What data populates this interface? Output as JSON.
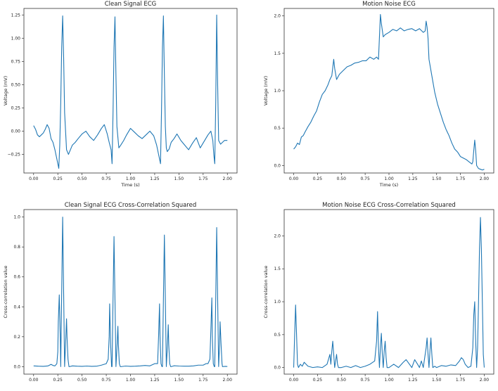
{
  "chart_data": [
    {
      "type": "line",
      "title": "Clean Signal ECG",
      "xlabel": "Time (s)",
      "ylabel": "Voltage (mV)",
      "xlim": [
        -0.1,
        2.1
      ],
      "ylim": [
        -0.45,
        1.32
      ],
      "xticks": [
        0.0,
        0.25,
        0.5,
        0.75,
        1.0,
        1.25,
        1.5,
        1.75,
        2.0
      ],
      "xtick_labels": [
        "0.00",
        "0.25",
        "0.50",
        "0.75",
        "1.00",
        "1.25",
        "1.50",
        "1.75",
        "2.00"
      ],
      "yticks": [
        -0.25,
        0.0,
        0.25,
        0.5,
        0.75,
        1.0,
        1.25
      ],
      "ytick_labels": [
        "−0.25",
        "0.00",
        "0.25",
        "0.50",
        "0.75",
        "1.00",
        "1.25"
      ],
      "series": [
        {
          "color": "#1f77b4",
          "x": [
            0.0,
            0.02,
            0.04,
            0.06,
            0.08,
            0.1,
            0.12,
            0.14,
            0.16,
            0.18,
            0.2,
            0.22,
            0.24,
            0.26,
            0.27,
            0.28,
            0.29,
            0.3,
            0.31,
            0.32,
            0.34,
            0.36,
            0.38,
            0.4,
            0.43,
            0.46,
            0.5,
            0.54,
            0.58,
            0.62,
            0.66,
            0.7,
            0.73,
            0.76,
            0.78,
            0.8,
            0.81,
            0.82,
            0.83,
            0.84,
            0.85,
            0.86,
            0.88,
            0.9,
            0.93,
            0.96,
            1.0,
            1.04,
            1.08,
            1.12,
            1.16,
            1.2,
            1.24,
            1.27,
            1.29,
            1.31,
            1.32,
            1.33,
            1.34,
            1.35,
            1.36,
            1.37,
            1.38,
            1.4,
            1.42,
            1.45,
            1.48,
            1.52,
            1.56,
            1.6,
            1.64,
            1.68,
            1.72,
            1.76,
            1.8,
            1.83,
            1.85,
            1.86,
            1.87,
            1.88,
            1.89,
            1.9,
            1.91,
            1.93,
            1.95,
            1.97,
            2.0
          ],
          "y": [
            0.06,
            0.02,
            -0.04,
            -0.06,
            -0.04,
            -0.02,
            0.02,
            0.07,
            0.03,
            -0.08,
            -0.12,
            -0.2,
            -0.3,
            -0.4,
            -0.15,
            0.3,
            0.9,
            1.24,
            0.8,
            0.2,
            -0.2,
            -0.25,
            -0.2,
            -0.15,
            -0.12,
            -0.08,
            -0.03,
            0.0,
            -0.06,
            -0.1,
            -0.04,
            0.03,
            0.07,
            -0.03,
            -0.12,
            -0.2,
            -0.35,
            0.2,
            0.9,
            1.23,
            0.6,
            0.05,
            -0.18,
            -0.15,
            -0.1,
            -0.04,
            0.03,
            -0.01,
            -0.05,
            -0.08,
            -0.04,
            0.0,
            -0.05,
            -0.15,
            -0.25,
            -0.35,
            0.2,
            0.9,
            1.24,
            0.6,
            0.05,
            -0.18,
            -0.22,
            -0.19,
            -0.12,
            -0.08,
            -0.03,
            -0.1,
            -0.15,
            -0.2,
            -0.13,
            -0.07,
            -0.18,
            -0.11,
            -0.04,
            0.0,
            -0.1,
            -0.25,
            -0.35,
            0.3,
            1.25,
            0.5,
            -0.1,
            -0.14,
            -0.12,
            -0.1,
            -0.1
          ]
        }
      ]
    },
    {
      "type": "line",
      "title": "Motion Noise ECG",
      "xlabel": "Time (s)",
      "ylabel": "Voltage (mV)",
      "xlim": [
        -0.1,
        2.1
      ],
      "ylim": [
        -0.1,
        2.1
      ],
      "xticks": [
        0.0,
        0.25,
        0.5,
        0.75,
        1.0,
        1.25,
        1.5,
        1.75,
        2.0
      ],
      "xtick_labels": [
        "0.00",
        "0.25",
        "0.50",
        "0.75",
        "1.00",
        "1.25",
        "1.50",
        "1.75",
        "2.00"
      ],
      "yticks": [
        0.0,
        0.5,
        1.0,
        1.5,
        2.0
      ],
      "ytick_labels": [
        "0.0",
        "0.5",
        "1.0",
        "1.5",
        "2.0"
      ],
      "series": [
        {
          "color": "#1f77b4",
          "x": [
            0.0,
            0.02,
            0.04,
            0.06,
            0.08,
            0.1,
            0.12,
            0.15,
            0.18,
            0.21,
            0.24,
            0.27,
            0.3,
            0.33,
            0.36,
            0.38,
            0.4,
            0.42,
            0.43,
            0.45,
            0.48,
            0.52,
            0.56,
            0.6,
            0.64,
            0.68,
            0.72,
            0.76,
            0.8,
            0.84,
            0.87,
            0.89,
            0.9,
            0.91,
            0.92,
            0.94,
            0.96,
            1.0,
            1.04,
            1.08,
            1.12,
            1.16,
            1.2,
            1.24,
            1.28,
            1.32,
            1.36,
            1.38,
            1.39,
            1.4,
            1.41,
            1.42,
            1.45,
            1.48,
            1.51,
            1.54,
            1.57,
            1.6,
            1.63,
            1.66,
            1.69,
            1.72,
            1.75,
            1.78,
            1.81,
            1.84,
            1.87,
            1.88,
            1.89,
            1.9,
            1.91,
            1.92,
            1.94,
            1.96,
            1.98,
            2.0
          ],
          "y": [
            0.22,
            0.25,
            0.3,
            0.28,
            0.38,
            0.4,
            0.45,
            0.52,
            0.58,
            0.66,
            0.73,
            0.85,
            0.95,
            1.0,
            1.08,
            1.15,
            1.2,
            1.42,
            1.3,
            1.15,
            1.22,
            1.27,
            1.32,
            1.34,
            1.37,
            1.38,
            1.4,
            1.4,
            1.45,
            1.42,
            1.45,
            1.42,
            1.72,
            2.02,
            1.9,
            1.72,
            1.75,
            1.78,
            1.82,
            1.8,
            1.84,
            1.8,
            1.82,
            1.83,
            1.8,
            1.83,
            1.78,
            1.8,
            1.93,
            1.85,
            1.7,
            1.42,
            1.2,
            0.98,
            0.82,
            0.7,
            0.58,
            0.48,
            0.4,
            0.3,
            0.22,
            0.18,
            0.12,
            0.1,
            0.08,
            0.05,
            0.02,
            0.05,
            0.2,
            0.34,
            0.2,
            0.0,
            -0.04,
            -0.05,
            -0.06,
            -0.05
          ]
        }
      ]
    },
    {
      "type": "line",
      "title": "Clean Signal ECG Cross-Correlation Squared",
      "xlabel": "",
      "ylabel": "Cross-correlation value",
      "xlim": [
        -0.1,
        2.1
      ],
      "ylim": [
        -0.05,
        1.05
      ],
      "xticks": [
        0.0,
        0.25,
        0.5,
        0.75,
        1.0,
        1.25,
        1.5,
        1.75,
        2.0
      ],
      "xtick_labels": [
        "0.00",
        "0.25",
        "0.50",
        "0.75",
        "1.00",
        "1.25",
        "1.50",
        "1.75",
        "2.00"
      ],
      "yticks": [
        0.0,
        0.2,
        0.4,
        0.6,
        0.8,
        1.0
      ],
      "ytick_labels": [
        "0.0",
        "0.2",
        "0.4",
        "0.6",
        "0.8",
        "1.0"
      ],
      "series": [
        {
          "color": "#1f77b4",
          "x": [
            0.0,
            0.05,
            0.1,
            0.15,
            0.18,
            0.2,
            0.22,
            0.24,
            0.25,
            0.255,
            0.265,
            0.275,
            0.28,
            0.29,
            0.3,
            0.31,
            0.32,
            0.33,
            0.34,
            0.345,
            0.355,
            0.365,
            0.37,
            0.4,
            0.45,
            0.5,
            0.55,
            0.6,
            0.65,
            0.7,
            0.75,
            0.77,
            0.78,
            0.785,
            0.795,
            0.805,
            0.81,
            0.82,
            0.83,
            0.84,
            0.85,
            0.86,
            0.87,
            0.875,
            0.885,
            0.895,
            0.9,
            0.95,
            1.0,
            1.05,
            1.1,
            1.15,
            1.2,
            1.25,
            1.28,
            1.29,
            1.3,
            1.305,
            1.315,
            1.325,
            1.33,
            1.34,
            1.35,
            1.36,
            1.37,
            1.38,
            1.39,
            1.395,
            1.405,
            1.415,
            1.42,
            1.45,
            1.5,
            1.55,
            1.6,
            1.65,
            1.7,
            1.75,
            1.78,
            1.8,
            1.82,
            1.83,
            1.84,
            1.845,
            1.855,
            1.865,
            1.87,
            1.88,
            1.89,
            1.9,
            1.91,
            1.92,
            1.925,
            1.935,
            1.945,
            1.95,
            1.98,
            2.0
          ],
          "y": [
            0.005,
            0.003,
            0.002,
            0.005,
            0.015,
            0.008,
            0.005,
            0.02,
            0.1,
            0.3,
            0.48,
            0.2,
            0.0,
            0.5,
            1.0,
            0.5,
            0.0,
            0.15,
            0.32,
            0.2,
            0.05,
            0.0,
            0.0,
            0.005,
            0.003,
            0.002,
            0.004,
            0.002,
            0.003,
            0.01,
            0.02,
            0.05,
            0.2,
            0.42,
            0.15,
            0.0,
            0.0,
            0.45,
            0.87,
            0.45,
            0.0,
            0.12,
            0.27,
            0.15,
            0.02,
            0.0,
            0.0,
            0.004,
            0.002,
            0.003,
            0.005,
            0.008,
            0.005,
            0.02,
            0.02,
            0.2,
            0.42,
            0.2,
            0.02,
            0.0,
            0.0,
            0.45,
            0.88,
            0.45,
            0.0,
            0.12,
            0.28,
            0.15,
            0.02,
            0.0,
            0.0,
            0.006,
            0.004,
            0.003,
            0.003,
            0.005,
            0.01,
            0.01,
            0.02,
            0.02,
            0.05,
            0.25,
            0.46,
            0.2,
            0.02,
            0.0,
            0.0,
            0.45,
            0.93,
            0.45,
            0.0,
            0.15,
            0.3,
            0.15,
            0.02,
            0.0,
            0.002,
            0.001
          ]
        }
      ]
    },
    {
      "type": "line",
      "title": "Motion Noise ECG Cross-Correlation Squared",
      "xlabel": "",
      "ylabel": "Cross-correlation value",
      "xlim": [
        -0.1,
        2.1
      ],
      "ylim": [
        -0.1,
        2.4
      ],
      "xticks": [
        0.0,
        0.25,
        0.5,
        0.75,
        1.0,
        1.25,
        1.5,
        1.75,
        2.0
      ],
      "xtick_labels": [
        "0.00",
        "0.25",
        "0.50",
        "0.75",
        "1.00",
        "1.25",
        "1.50",
        "1.75",
        "2.00"
      ],
      "yticks": [
        0.0,
        0.5,
        1.0,
        1.5,
        2.0
      ],
      "ytick_labels": [
        "0.0",
        "0.5",
        "1.0",
        "1.5",
        "2.0"
      ],
      "series": [
        {
          "color": "#1f77b4",
          "x": [
            0.0,
            0.01,
            0.02,
            0.03,
            0.04,
            0.05,
            0.07,
            0.09,
            0.11,
            0.13,
            0.15,
            0.2,
            0.25,
            0.3,
            0.35,
            0.37,
            0.38,
            0.39,
            0.4,
            0.41,
            0.42,
            0.43,
            0.44,
            0.45,
            0.46,
            0.47,
            0.5,
            0.55,
            0.6,
            0.65,
            0.7,
            0.75,
            0.8,
            0.85,
            0.87,
            0.88,
            0.89,
            0.9,
            0.91,
            0.92,
            0.93,
            0.94,
            0.95,
            0.96,
            0.97,
            0.98,
            1.0,
            1.05,
            1.1,
            1.15,
            1.18,
            1.2,
            1.24,
            1.27,
            1.3,
            1.32,
            1.34,
            1.36,
            1.38,
            1.39,
            1.4,
            1.41,
            1.42,
            1.43,
            1.44,
            1.45,
            1.46,
            1.48,
            1.5,
            1.55,
            1.6,
            1.65,
            1.7,
            1.74,
            1.76,
            1.78,
            1.8,
            1.83,
            1.86,
            1.88,
            1.89,
            1.9,
            1.91,
            1.92,
            1.93,
            1.94,
            1.95,
            1.96,
            1.97,
            1.98,
            1.99,
            2.0
          ],
          "y": [
            0.0,
            0.5,
            0.95,
            0.5,
            0.05,
            0.0,
            0.05,
            0.02,
            0.08,
            0.05,
            0.02,
            0.0,
            0.01,
            0.0,
            0.05,
            0.15,
            0.2,
            0.05,
            0.25,
            0.4,
            0.2,
            0.0,
            0.1,
            0.2,
            0.05,
            0.0,
            0.0,
            0.02,
            0.0,
            0.03,
            0.0,
            0.02,
            0.05,
            0.1,
            0.4,
            0.85,
            0.3,
            0.0,
            0.3,
            0.52,
            0.2,
            0.0,
            0.25,
            0.4,
            0.15,
            0.0,
            0.0,
            0.05,
            0.0,
            0.08,
            0.12,
            0.08,
            0.0,
            0.12,
            0.05,
            0.0,
            0.1,
            0.0,
            0.2,
            0.3,
            0.45,
            0.2,
            0.0,
            0.25,
            0.45,
            0.2,
            0.0,
            0.02,
            0.0,
            0.03,
            0.02,
            0.04,
            0.03,
            0.1,
            0.15,
            0.12,
            0.05,
            0.0,
            0.02,
            0.3,
            0.8,
            1.0,
            0.4,
            0.0,
            0.3,
            1.0,
            1.8,
            2.28,
            1.8,
            1.0,
            0.2,
            0.0
          ]
        }
      ]
    }
  ]
}
